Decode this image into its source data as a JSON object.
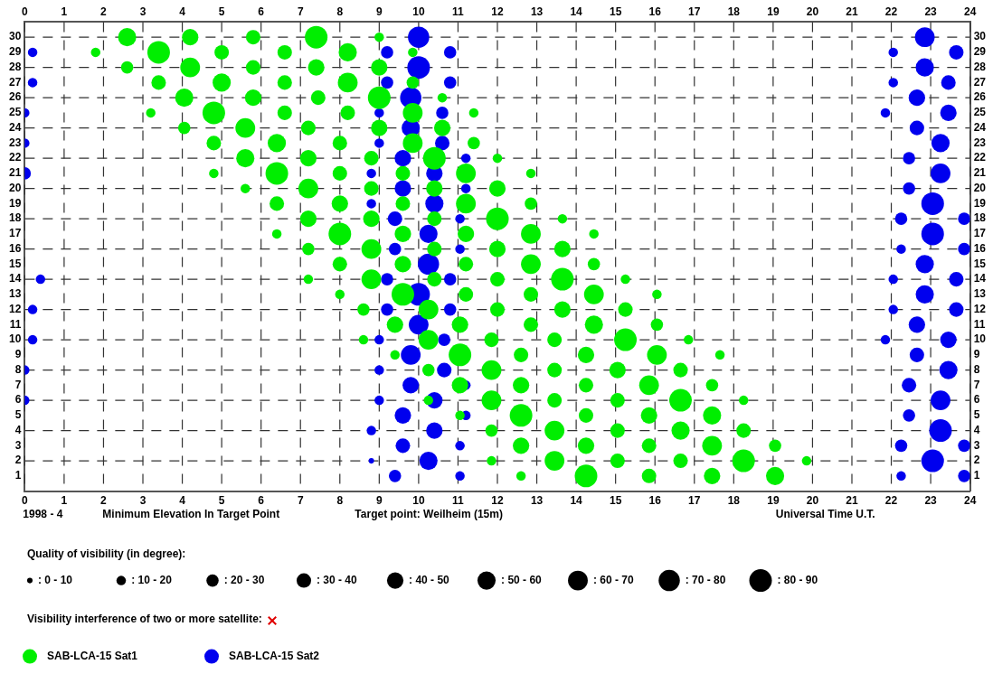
{
  "chart_data": {
    "type": "bubble",
    "xlabel": "Universal Time U.T.",
    "legend_title": "Quality of visibility (in degree):",
    "annotations": [
      "1998 - 4",
      "Minimum Elevation In Target Point",
      "Target point: Weilheim (15m)",
      "Visibility interference of two or more satellite:"
    ],
    "xlim": [
      0,
      24
    ],
    "xticks": [
      0,
      1,
      2,
      3,
      4,
      5,
      6,
      7,
      8,
      9,
      10,
      11,
      12,
      13,
      14,
      15,
      16,
      17,
      18,
      19,
      20,
      21,
      22,
      23,
      24
    ],
    "x2lim": [
      0,
      24
    ],
    "x2ticks": [
      0,
      1,
      2,
      3,
      4,
      5,
      6,
      7,
      8,
      9,
      10,
      11,
      12,
      13,
      14,
      15,
      16,
      17,
      18,
      19,
      20,
      21,
      22,
      23,
      24
    ],
    "ylim": [
      0,
      31
    ],
    "yticks": [
      1,
      2,
      3,
      4,
      5,
      6,
      7,
      8,
      9,
      10,
      11,
      12,
      13,
      14,
      15,
      16,
      17,
      18,
      19,
      20,
      21,
      22,
      23,
      24,
      25,
      26,
      27,
      28,
      29,
      30
    ],
    "y2lim": [
      0,
      31
    ],
    "y2ticks": [
      1,
      2,
      3,
      4,
      5,
      6,
      7,
      8,
      9,
      10,
      11,
      12,
      13,
      14,
      15,
      16,
      17,
      18,
      19,
      20,
      21,
      22,
      23,
      24,
      25,
      26,
      27,
      28,
      29,
      30
    ],
    "grid": true,
    "legend": "bottom",
    "size_legend": [
      {
        "value": 5,
        "label": ": 0 - 10"
      },
      {
        "value": 15,
        "label": ": 10 - 20"
      },
      {
        "value": 25,
        "label": ": 20 - 30"
      },
      {
        "value": 35,
        "label": ": 30 - 40"
      },
      {
        "value": 45,
        "label": ": 40 - 50"
      },
      {
        "value": 55,
        "label": ": 50 - 60"
      },
      {
        "value": 65,
        "label": ": 60 - 70"
      },
      {
        "value": 75,
        "label": ": 70 - 80"
      },
      {
        "value": 85,
        "label": ": 80 - 90"
      }
    ],
    "series": [
      {
        "name": "SAB-LCA-15 Sat1",
        "color": "#00ee00",
        "x": [
          2.6,
          4.2,
          5.8,
          7.4,
          9.0,
          1.8,
          3.4,
          5.0,
          6.6,
          8.2,
          9.85,
          2.6,
          4.2,
          5.8,
          7.4,
          9.0,
          3.4,
          5.0,
          6.6,
          8.2,
          9.85,
          4.05,
          5.8,
          7.45,
          9.0,
          10.6,
          3.2,
          4.8,
          6.6,
          8.2,
          9.85,
          11.4,
          4.05,
          5.6,
          7.2,
          9.0,
          10.6,
          4.8,
          6.4,
          8.0,
          9.85,
          11.4,
          5.6,
          7.2,
          8.8,
          10.4,
          12.0,
          4.8,
          6.4,
          8.0,
          9.6,
          11.2,
          12.85,
          5.6,
          7.2,
          8.8,
          10.4,
          12.0,
          6.4,
          8.0,
          9.6,
          11.2,
          12.85,
          7.2,
          8.8,
          10.4,
          12.0,
          13.65,
          6.4,
          8.0,
          9.6,
          11.2,
          12.85,
          14.45,
          7.2,
          8.8,
          10.4,
          12.0,
          13.65,
          8.0,
          9.6,
          11.2,
          12.85,
          14.45,
          7.2,
          8.8,
          10.4,
          12.0,
          13.65,
          15.25,
          8.0,
          9.6,
          11.2,
          12.85,
          14.45,
          16.05,
          8.6,
          10.25,
          12.0,
          13.65,
          15.25,
          9.4,
          11.05,
          12.85,
          14.45,
          16.05,
          8.6,
          10.25,
          11.85,
          13.45,
          15.25,
          16.85,
          9.4,
          11.05,
          12.6,
          14.25,
          16.05,
          17.65,
          10.25,
          11.85,
          13.45,
          15.05,
          16.65,
          11.05,
          12.6,
          14.25,
          15.85,
          17.45,
          10.25,
          11.85,
          13.45,
          15.05,
          16.65,
          18.25,
          11.05,
          12.6,
          14.25,
          15.85,
          17.45,
          11.85,
          13.45,
          15.05,
          16.65,
          18.25,
          12.6,
          14.25,
          15.85,
          17.45,
          19.05,
          11.85,
          13.45,
          15.05,
          16.65,
          18.25,
          19.85,
          12.6,
          14.25,
          15.85,
          17.45,
          19.05
        ],
        "values": [
          30,
          30,
          30,
          30,
          30,
          29,
          29,
          29,
          29,
          29,
          29,
          28,
          28,
          28,
          28,
          28,
          27,
          27,
          27,
          27,
          27,
          26,
          26,
          26,
          26,
          26,
          25,
          25,
          25,
          25,
          25,
          25,
          24,
          24,
          24,
          24,
          24,
          23,
          23,
          23,
          23,
          23,
          22,
          22,
          22,
          22,
          22,
          21,
          21,
          21,
          21,
          21,
          21,
          20,
          20,
          20,
          20,
          20,
          19,
          19,
          19,
          19,
          19,
          18,
          18,
          18,
          18,
          18,
          17,
          17,
          17,
          17,
          17,
          17,
          16,
          16,
          16,
          16,
          16,
          15,
          15,
          15,
          15,
          15,
          14,
          14,
          14,
          14,
          14,
          14,
          13,
          13,
          13,
          13,
          13,
          13,
          12,
          12,
          12,
          12,
          12,
          11,
          11,
          11,
          11,
          11,
          10,
          10,
          10,
          10,
          10,
          10,
          9,
          9,
          9,
          9,
          9,
          9,
          8,
          8,
          8,
          8,
          8,
          7,
          7,
          7,
          7,
          7,
          6,
          6,
          6,
          6,
          6,
          6,
          5,
          5,
          5,
          5,
          5,
          4,
          4,
          4,
          4,
          4,
          3,
          3,
          3,
          3,
          3,
          2,
          2,
          2,
          2,
          2,
          2,
          1,
          1,
          1,
          1,
          1
        ],
        "sizes": [
          55,
          45,
          35,
          85,
          15,
          15,
          85,
          35,
          35,
          55,
          15,
          25,
          65,
          35,
          45,
          45,
          35,
          55,
          35,
          65,
          25,
          55,
          45,
          35,
          85,
          15,
          15,
          85,
          35,
          35,
          65,
          15,
          25,
          65,
          35,
          45,
          45,
          35,
          55,
          35,
          65,
          25,
          55,
          45,
          35,
          85,
          15,
          15,
          85,
          35,
          35,
          65,
          15,
          15,
          65,
          35,
          45,
          45,
          35,
          45,
          35,
          65,
          25,
          45,
          45,
          35,
          85,
          15,
          15,
          85,
          45,
          45,
          65,
          15,
          25,
          65,
          35,
          45,
          45,
          35,
          45,
          35,
          65,
          25,
          15,
          65,
          35,
          35,
          85,
          15,
          15,
          85,
          35,
          35,
          65,
          15,
          25,
          65,
          35,
          45,
          35,
          45,
          45,
          35,
          55,
          25,
          15,
          65,
          35,
          35,
          85,
          15,
          15,
          85,
          35,
          45,
          65,
          15,
          25,
          65,
          35,
          45,
          35,
          45,
          45,
          35,
          65,
          25,
          15,
          65,
          35,
          35,
          85,
          15,
          15,
          85,
          35,
          45,
          55,
          25,
          65,
          35,
          55,
          35,
          45,
          45,
          35,
          65,
          25,
          15,
          65,
          35,
          35,
          85,
          15,
          15,
          85,
          35,
          45,
          55
        ]
      },
      {
        "name": "SAB-LCA-15 Sat2",
        "color": "#0000ee",
        "x": [
          10.0,
          22.85,
          0.2,
          9.2,
          10.8,
          22.05,
          23.65,
          10.0,
          22.85,
          0.2,
          9.2,
          10.8,
          22.05,
          23.45,
          9.8,
          22.65,
          0.0,
          9.0,
          10.6,
          21.85,
          23.45,
          9.8,
          22.65,
          0.0,
          9.0,
          10.6,
          23.25,
          9.6,
          11.2,
          22.45,
          0.0,
          8.8,
          10.4,
          23.25,
          9.6,
          11.2,
          22.45,
          8.8,
          10.4,
          23.05,
          9.4,
          11.05,
          22.25,
          23.85,
          10.25,
          23.05,
          9.4,
          11.05,
          22.25,
          23.85,
          10.25,
          22.85,
          0.4,
          9.2,
          10.8,
          22.05,
          23.65,
          10.0,
          22.85,
          0.2,
          9.2,
          10.8,
          22.05,
          23.65,
          10.0,
          22.65,
          0.2,
          9.0,
          10.65,
          21.85,
          23.45,
          9.8,
          22.65,
          0.0,
          9.0,
          10.65,
          23.45,
          9.8,
          11.2,
          22.45,
          0.0,
          9.0,
          10.4,
          23.25,
          9.6,
          11.2,
          22.45,
          8.8,
          10.4,
          23.25,
          9.6,
          11.05,
          22.25,
          23.85,
          8.8,
          10.25,
          23.05,
          9.4,
          11.05,
          22.25,
          23.85
        ],
        "values": [
          30,
          30,
          29,
          29,
          29,
          29,
          29,
          28,
          28,
          27,
          27,
          27,
          27,
          27,
          26,
          26,
          25,
          25,
          25,
          25,
          25,
          24,
          24,
          23,
          23,
          23,
          23,
          22,
          22,
          22,
          21,
          21,
          21,
          21,
          20,
          20,
          20,
          19,
          19,
          19,
          18,
          18,
          18,
          18,
          17,
          17,
          16,
          16,
          16,
          16,
          15,
          15,
          14,
          14,
          14,
          14,
          14,
          13,
          13,
          12,
          12,
          12,
          12,
          12,
          11,
          11,
          10,
          10,
          10,
          10,
          10,
          9,
          9,
          8,
          8,
          8,
          8,
          7,
          7,
          7,
          6,
          6,
          6,
          6,
          5,
          5,
          5,
          4,
          4,
          4,
          3,
          3,
          3,
          3,
          2,
          2,
          2,
          1,
          1,
          1,
          1
        ],
        "sizes": [
          75,
          65,
          15,
          25,
          25,
          15,
          35,
          85,
          55,
          15,
          25,
          25,
          15,
          35,
          75,
          45,
          15,
          15,
          25,
          15,
          45,
          55,
          35,
          15,
          15,
          35,
          55,
          45,
          15,
          25,
          25,
          15,
          45,
          65,
          45,
          15,
          25,
          15,
          55,
          85,
          35,
          15,
          25,
          25,
          55,
          85,
          25,
          15,
          15,
          25,
          75,
          55,
          15,
          25,
          25,
          15,
          35,
          85,
          55,
          15,
          25,
          25,
          15,
          35,
          65,
          45,
          15,
          15,
          25,
          15,
          45,
          65,
          35,
          15,
          15,
          35,
          55,
          45,
          15,
          35,
          15,
          15,
          45,
          65,
          45,
          15,
          25,
          15,
          45,
          85,
          35,
          15,
          25,
          25,
          5,
          55,
          85,
          25,
          15,
          15,
          25
        ]
      }
    ]
  }
}
